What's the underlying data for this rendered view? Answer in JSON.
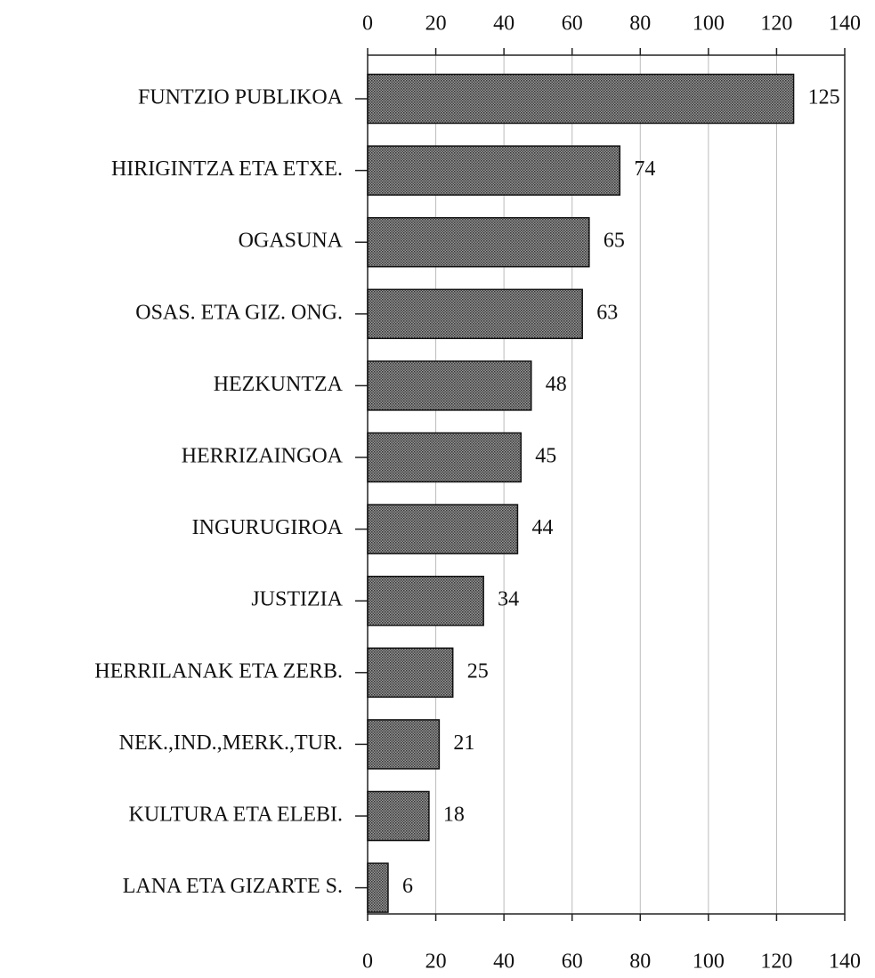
{
  "chart_data": {
    "type": "barh",
    "categories": [
      "FUNTZIO PUBLIKOA",
      "HIRIGINTZA ETA ETXE.",
      "OGASUNA",
      "OSAS. ETA GIZ. ONG.",
      "HEZKUNTZA",
      "HERRIZAINGOA",
      "INGURUGIROA",
      "JUSTIZIA",
      "HERRILANAK ETA ZERB.",
      "NEK.,IND.,MERK.,TUR.",
      "KULTURA ETA ELEBI.",
      "LANA ETA GIZARTE S."
    ],
    "values": [
      125,
      74,
      65,
      63,
      48,
      45,
      44,
      34,
      25,
      21,
      18,
      6
    ],
    "color": "#7a7a7a",
    "xlim": [
      0,
      140
    ],
    "xticks": [
      0,
      20,
      40,
      60,
      80,
      100,
      120,
      140
    ],
    "grid": true
  }
}
